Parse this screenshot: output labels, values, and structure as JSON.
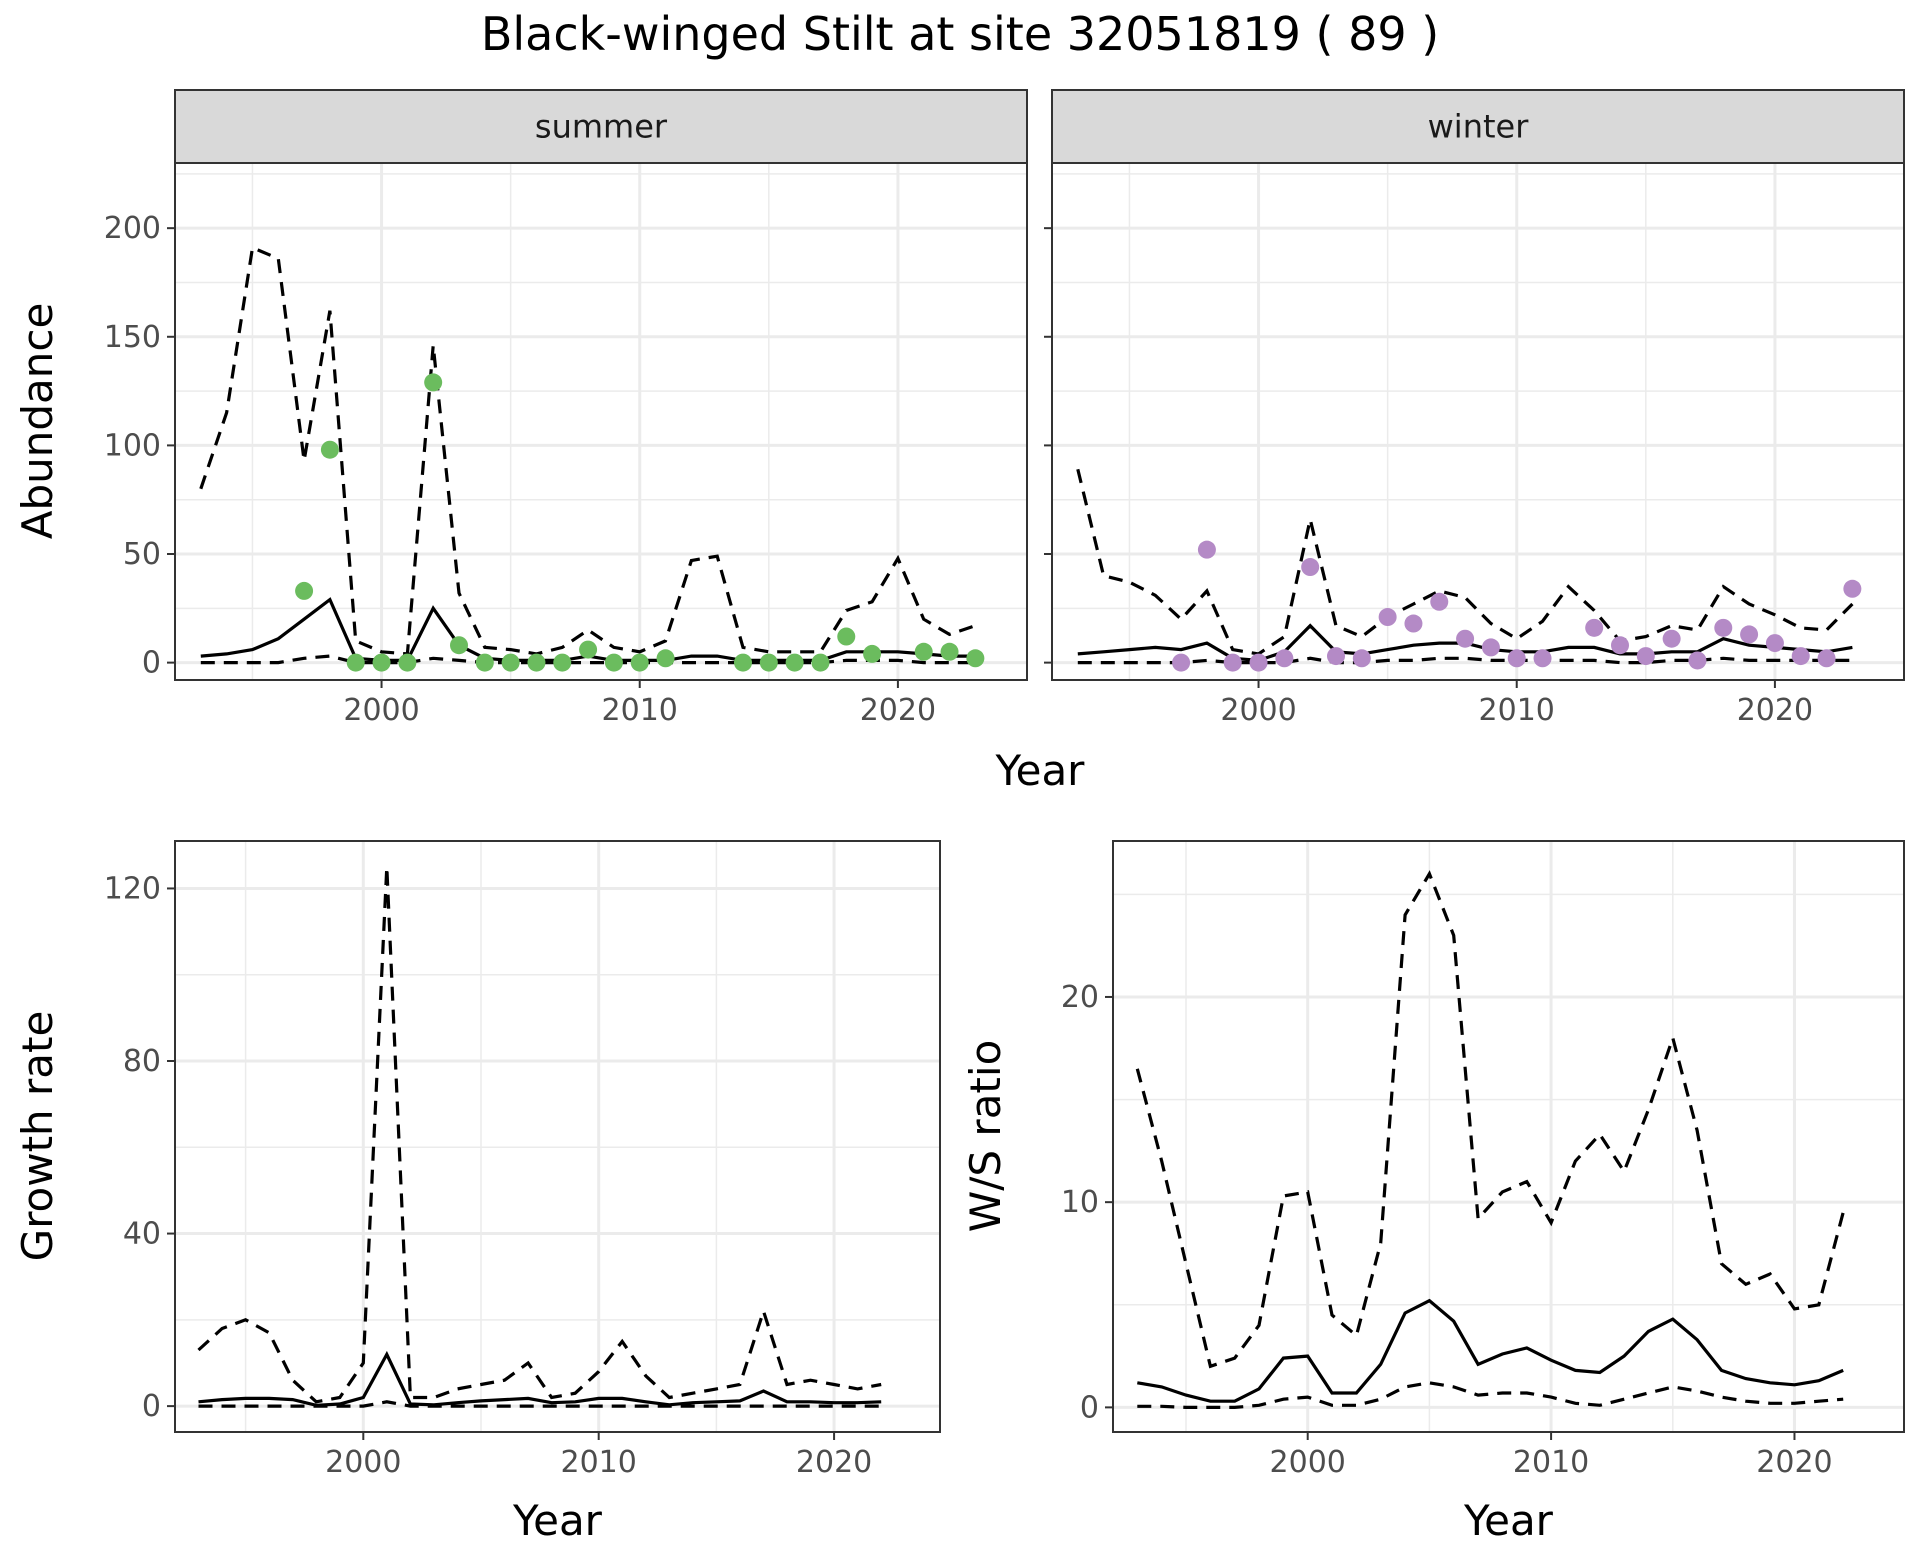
{
  "title": "Black-winged Stilt at site 32051819 ( 89 )",
  "colors": {
    "summer_points": "#6bbc5e",
    "winter_points": "#b48ac6",
    "strip_fill": "#d9d9d9"
  },
  "chart_data": [
    {
      "type": "line",
      "panel": "summer",
      "strip_label": "summer",
      "xlabel": "Year",
      "ylabel": "Abundance",
      "xlim": [
        1992,
        2025
      ],
      "ylim": [
        -8,
        230
      ],
      "x_ticks": [
        2000,
        2010,
        2020
      ],
      "y_ticks": [
        0,
        50,
        100,
        150,
        200
      ],
      "series": [
        {
          "role": "estimate",
          "style": "solid",
          "x": [
            1993,
            1994,
            1995,
            1996,
            1997,
            1998,
            1999,
            2000,
            2001,
            2002,
            2003,
            2004,
            2005,
            2006,
            2007,
            2008,
            2009,
            2010,
            2011,
            2012,
            2013,
            2014,
            2015,
            2016,
            2017,
            2018,
            2019,
            2020,
            2021,
            2022,
            2023
          ],
          "values": [
            3,
            4,
            6,
            11,
            20,
            29,
            2,
            1,
            1,
            25,
            8,
            2,
            1,
            1,
            1,
            3,
            1,
            1,
            1,
            3,
            3,
            1,
            1,
            1,
            1,
            5,
            5,
            5,
            4,
            3,
            3
          ]
        },
        {
          "role": "upper",
          "style": "dashed",
          "x": [
            1993,
            1994,
            1995,
            1996,
            1997,
            1998,
            1999,
            2000,
            2001,
            2002,
            2003,
            2004,
            2005,
            2006,
            2007,
            2008,
            2009,
            2010,
            2011,
            2012,
            2013,
            2014,
            2015,
            2016,
            2017,
            2018,
            2019,
            2020,
            2021,
            2022,
            2023
          ],
          "values": [
            80,
            115,
            191,
            186,
            93,
            162,
            10,
            5,
            4,
            146,
            32,
            7,
            6,
            4,
            7,
            15,
            7,
            5,
            10,
            47,
            49,
            7,
            5,
            5,
            5,
            24,
            28,
            48,
            20,
            13,
            17
          ]
        },
        {
          "role": "lower",
          "style": "dashed",
          "x": [
            1993,
            1994,
            1995,
            1996,
            1997,
            1998,
            1999,
            2000,
            2001,
            2002,
            2003,
            2004,
            2005,
            2006,
            2007,
            2008,
            2009,
            2010,
            2011,
            2012,
            2013,
            2014,
            2015,
            2016,
            2017,
            2018,
            2019,
            2020,
            2021,
            2022,
            2023
          ],
          "values": [
            0,
            0,
            0,
            0,
            2,
            3,
            0,
            0,
            0,
            2,
            1,
            0,
            0,
            0,
            0,
            0,
            0,
            0,
            0,
            0,
            0,
            0,
            0,
            0,
            0,
            1,
            1,
            1,
            0,
            0,
            0
          ]
        },
        {
          "role": "observed",
          "style": "points",
          "x": [
            1997,
            1998,
            1999,
            2000,
            2001,
            2002,
            2003,
            2004,
            2005,
            2006,
            2007,
            2008,
            2009,
            2010,
            2011,
            2014,
            2015,
            2016,
            2017,
            2018,
            2019,
            2021,
            2022,
            2023
          ],
          "values": [
            33,
            98,
            0,
            0,
            0,
            129,
            8,
            0,
            0,
            0,
            0,
            6,
            0,
            0,
            2,
            0,
            0,
            0,
            0,
            12,
            4,
            5,
            5,
            2
          ]
        }
      ]
    },
    {
      "type": "line",
      "panel": "winter",
      "strip_label": "winter",
      "xlabel": "Year",
      "ylabel": "Abundance",
      "xlim": [
        1992,
        2025
      ],
      "ylim": [
        -8,
        230
      ],
      "x_ticks": [
        2000,
        2010,
        2020
      ],
      "y_ticks": [
        0,
        50,
        100,
        150,
        200
      ],
      "series": [
        {
          "role": "estimate",
          "style": "solid",
          "x": [
            1993,
            1994,
            1995,
            1996,
            1997,
            1998,
            1999,
            2000,
            2001,
            2002,
            2003,
            2004,
            2005,
            2006,
            2007,
            2008,
            2009,
            2010,
            2011,
            2012,
            2013,
            2014,
            2015,
            2016,
            2017,
            2018,
            2019,
            2020,
            2021,
            2022,
            2023
          ],
          "values": [
            4,
            5,
            6,
            7,
            6,
            9,
            2,
            1,
            5,
            17,
            5,
            4,
            6,
            8,
            9,
            9,
            6,
            5,
            5,
            7,
            7,
            4,
            4,
            5,
            5,
            11,
            8,
            7,
            6,
            5,
            7
          ]
        },
        {
          "role": "upper",
          "style": "dashed",
          "x": [
            1993,
            1994,
            1995,
            1996,
            1997,
            1998,
            1999,
            2000,
            2001,
            2002,
            2003,
            2004,
            2005,
            2006,
            2007,
            2008,
            2009,
            2010,
            2011,
            2012,
            2013,
            2014,
            2015,
            2016,
            2017,
            2018,
            2019,
            2020,
            2021,
            2022,
            2023
          ],
          "values": [
            89,
            40,
            37,
            31,
            20,
            33,
            6,
            4,
            12,
            66,
            17,
            12,
            21,
            27,
            33,
            30,
            18,
            11,
            19,
            35,
            24,
            10,
            12,
            17,
            15,
            35,
            27,
            22,
            16,
            15,
            27
          ]
        },
        {
          "role": "lower",
          "style": "dashed",
          "x": [
            1993,
            1994,
            1995,
            1996,
            1997,
            1998,
            1999,
            2000,
            2001,
            2002,
            2003,
            2004,
            2005,
            2006,
            2007,
            2008,
            2009,
            2010,
            2011,
            2012,
            2013,
            2014,
            2015,
            2016,
            2017,
            2018,
            2019,
            2020,
            2021,
            2022,
            2023
          ],
          "values": [
            0,
            0,
            0,
            0,
            0,
            1,
            0,
            0,
            0,
            2,
            0,
            0,
            1,
            1,
            2,
            2,
            1,
            1,
            1,
            1,
            1,
            0,
            0,
            1,
            1,
            2,
            1,
            1,
            1,
            1,
            1
          ]
        },
        {
          "role": "observed",
          "style": "points",
          "x": [
            1997,
            1998,
            1999,
            2000,
            2001,
            2002,
            2003,
            2004,
            2005,
            2006,
            2007,
            2008,
            2009,
            2010,
            2011,
            2013,
            2014,
            2015,
            2016,
            2017,
            2018,
            2019,
            2020,
            2021,
            2022,
            2023
          ],
          "values": [
            0,
            52,
            0,
            0,
            2,
            44,
            3,
            2,
            21,
            18,
            28,
            11,
            7,
            2,
            2,
            16,
            8,
            3,
            11,
            1,
            16,
            13,
            9,
            3,
            2,
            34
          ]
        }
      ]
    },
    {
      "type": "line",
      "panel": "growth",
      "xlabel": "Year",
      "ylabel": "Growth rate",
      "xlim": [
        1992,
        2024.5
      ],
      "ylim": [
        -6,
        131
      ],
      "x_ticks": [
        2000,
        2010,
        2020
      ],
      "y_ticks": [
        0,
        40,
        80,
        120
      ],
      "series": [
        {
          "role": "estimate",
          "style": "solid",
          "x": [
            1993,
            1994,
            1995,
            1996,
            1997,
            1998,
            1999,
            2000,
            2001,
            2002,
            2003,
            2004,
            2005,
            2006,
            2007,
            2008,
            2009,
            2010,
            2011,
            2012,
            2013,
            2014,
            2015,
            2016,
            2017,
            2018,
            2019,
            2020,
            2021,
            2022
          ],
          "values": [
            1,
            1.5,
            1.8,
            1.8,
            1.5,
            0.2,
            0.5,
            2,
            12,
            0.5,
            0.3,
            0.8,
            1.2,
            1.5,
            1.8,
            0.8,
            1,
            1.8,
            1.8,
            1,
            0.3,
            0.8,
            1,
            1.2,
            3.5,
            1,
            1,
            0.8,
            0.8,
            1
          ]
        },
        {
          "role": "upper",
          "style": "dashed",
          "x": [
            1993,
            1994,
            1995,
            1996,
            1997,
            1998,
            1999,
            2000,
            2001,
            2002,
            2003,
            2004,
            2005,
            2006,
            2007,
            2008,
            2009,
            2010,
            2011,
            2012,
            2013,
            2014,
            2015,
            2016,
            2017,
            2018,
            2019,
            2020,
            2021,
            2022
          ],
          "values": [
            13,
            18,
            20,
            17,
            6,
            1,
            2,
            10,
            125,
            2,
            2,
            4,
            5,
            6,
            10,
            2,
            3,
            8,
            15,
            7,
            2,
            3,
            4,
            5,
            22,
            5,
            6,
            5,
            4,
            5
          ]
        },
        {
          "role": "lower",
          "style": "dashed",
          "x": [
            1993,
            1994,
            1995,
            1996,
            1997,
            1998,
            1999,
            2000,
            2001,
            2002,
            2003,
            2004,
            2005,
            2006,
            2007,
            2008,
            2009,
            2010,
            2011,
            2012,
            2013,
            2014,
            2015,
            2016,
            2017,
            2018,
            2019,
            2020,
            2021,
            2022
          ],
          "values": [
            0,
            0,
            0,
            0,
            0,
            0,
            0,
            0,
            1,
            0,
            0,
            0,
            0,
            0,
            0,
            0,
            0,
            0,
            0,
            0,
            0,
            0,
            0,
            0,
            0,
            0,
            0,
            0,
            0,
            0
          ]
        }
      ]
    },
    {
      "type": "line",
      "panel": "ratio",
      "xlabel": "Year",
      "ylabel": "W/S ratio",
      "xlim": [
        1992,
        2024.5
      ],
      "ylim": [
        -1.2,
        27.6
      ],
      "x_ticks": [
        2000,
        2010,
        2020
      ],
      "y_ticks": [
        0,
        10,
        20
      ],
      "series": [
        {
          "role": "estimate",
          "style": "solid",
          "x": [
            1993,
            1994,
            1995,
            1996,
            1997,
            1998,
            1999,
            2000,
            2001,
            2002,
            2003,
            2004,
            2005,
            2006,
            2007,
            2008,
            2009,
            2010,
            2011,
            2012,
            2013,
            2014,
            2015,
            2016,
            2017,
            2018,
            2019,
            2020,
            2021,
            2022
          ],
          "values": [
            1.2,
            1,
            0.6,
            0.3,
            0.3,
            0.9,
            2.4,
            2.5,
            0.7,
            0.7,
            2.1,
            4.6,
            5.2,
            4.2,
            2.1,
            2.6,
            2.9,
            2.3,
            1.8,
            1.7,
            2.5,
            3.7,
            4.3,
            3.3,
            1.8,
            1.4,
            1.2,
            1.1,
            1.3,
            1.8
          ]
        },
        {
          "role": "upper",
          "style": "dashed",
          "x": [
            1993,
            1994,
            1995,
            1996,
            1997,
            1998,
            1999,
            2000,
            2001,
            2002,
            2003,
            2004,
            2005,
            2006,
            2007,
            2008,
            2009,
            2010,
            2011,
            2012,
            2013,
            2014,
            2015,
            2016,
            2017,
            2018,
            2019,
            2020,
            2021,
            2022
          ],
          "values": [
            16.5,
            12,
            7,
            2,
            2.4,
            4,
            10.3,
            10.5,
            4.5,
            3.5,
            8,
            24,
            26,
            23,
            9.2,
            10.5,
            11,
            9,
            12,
            13.3,
            11.5,
            14.5,
            18,
            13.5,
            7,
            6,
            6.5,
            4.8,
            5,
            9.5
          ]
        },
        {
          "role": "lower",
          "style": "dashed",
          "x": [
            1993,
            1994,
            1995,
            1996,
            1997,
            1998,
            1999,
            2000,
            2001,
            2002,
            2003,
            2004,
            2005,
            2006,
            2007,
            2008,
            2009,
            2010,
            2011,
            2012,
            2013,
            2014,
            2015,
            2016,
            2017,
            2018,
            2019,
            2020,
            2021,
            2022
          ],
          "values": [
            0.05,
            0.05,
            0,
            0,
            0,
            0.1,
            0.4,
            0.5,
            0.1,
            0.1,
            0.4,
            1,
            1.2,
            1,
            0.6,
            0.7,
            0.7,
            0.5,
            0.2,
            0.1,
            0.4,
            0.7,
            1,
            0.8,
            0.5,
            0.3,
            0.2,
            0.2,
            0.3,
            0.4
          ]
        }
      ]
    }
  ]
}
